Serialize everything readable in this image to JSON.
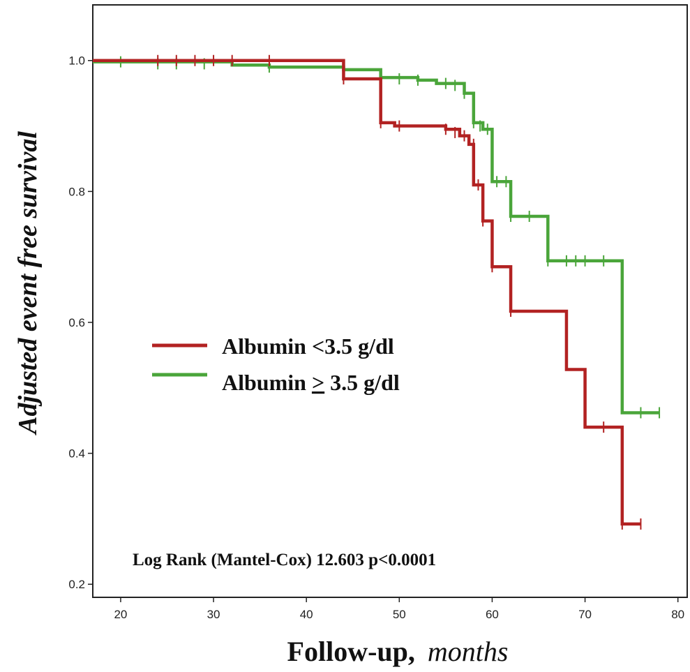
{
  "chart_data": {
    "type": "line",
    "subtype": "kaplan-meier",
    "ylabel": "Adjusted event free survival",
    "xlabel": {
      "main": "Follow-up,",
      "unit": "months"
    },
    "xlim": [
      17,
      81
    ],
    "ylim": [
      0.18,
      1.085
    ],
    "xticks": [
      20,
      30,
      40,
      50,
      60,
      70,
      80
    ],
    "yticks": [
      0.2,
      0.4,
      0.6,
      0.8,
      1.0
    ],
    "xtick_labels": [
      "20",
      "30",
      "40",
      "50",
      "60",
      "70",
      "80"
    ],
    "ytick_labels": [
      "0.2",
      "0.4",
      "0.6",
      "0.8",
      "1.0"
    ],
    "series": [
      {
        "name": "Albumin <3.5 g/dl",
        "legend_label": "Albumin <3.5 g/dl",
        "color": "#b22222",
        "steps": [
          [
            17,
            1.0
          ],
          [
            44,
            0.972
          ],
          [
            48,
            0.905
          ],
          [
            49.5,
            0.9
          ],
          [
            55,
            0.895
          ],
          [
            56.5,
            0.885
          ],
          [
            57.5,
            0.872
          ],
          [
            58,
            0.81
          ],
          [
            59,
            0.755
          ],
          [
            60,
            0.685
          ],
          [
            62,
            0.617
          ],
          [
            68,
            0.528
          ],
          [
            70,
            0.44
          ],
          [
            74,
            0.292
          ],
          [
            76,
            0.292
          ]
        ],
        "censored": [
          [
            24,
            1.0
          ],
          [
            26,
            1.0
          ],
          [
            28,
            1.0
          ],
          [
            30,
            1.0
          ],
          [
            32,
            1.0
          ],
          [
            36,
            1.0
          ],
          [
            44,
            0.972
          ],
          [
            48,
            0.905
          ],
          [
            50,
            0.9
          ],
          [
            55,
            0.895
          ],
          [
            56,
            0.89
          ],
          [
            57,
            0.885
          ],
          [
            58,
            0.872
          ],
          [
            58.5,
            0.81
          ],
          [
            59,
            0.755
          ],
          [
            60,
            0.685
          ],
          [
            62,
            0.617
          ],
          [
            72,
            0.44
          ],
          [
            74,
            0.292
          ],
          [
            76,
            0.292
          ]
        ]
      },
      {
        "name": "Albumin >=3.5 g/dl",
        "legend_prefix": "Albumin ",
        "legend_symbol": ">",
        "legend_suffix": "3.5 g/dl",
        "color": "#4aa53a",
        "steps": [
          [
            17,
            0.998
          ],
          [
            32,
            0.993
          ],
          [
            36,
            0.99
          ],
          [
            44,
            0.986
          ],
          [
            48,
            0.974
          ],
          [
            52,
            0.97
          ],
          [
            54,
            0.965
          ],
          [
            57,
            0.95
          ],
          [
            58,
            0.905
          ],
          [
            59,
            0.895
          ],
          [
            60,
            0.815
          ],
          [
            62,
            0.762
          ],
          [
            66,
            0.694
          ],
          [
            74,
            0.462
          ],
          [
            78,
            0.462
          ]
        ],
        "censored": [
          [
            20,
            0.998
          ],
          [
            24,
            0.995
          ],
          [
            26,
            0.995
          ],
          [
            29,
            0.995
          ],
          [
            36,
            0.99
          ],
          [
            44,
            0.986
          ],
          [
            48,
            0.974
          ],
          [
            50,
            0.972
          ],
          [
            52,
            0.97
          ],
          [
            55,
            0.965
          ],
          [
            56,
            0.962
          ],
          [
            57,
            0.95
          ],
          [
            58,
            0.905
          ],
          [
            58.7,
            0.9
          ],
          [
            59.5,
            0.895
          ],
          [
            60.5,
            0.815
          ],
          [
            61.5,
            0.815
          ],
          [
            62,
            0.762
          ],
          [
            64,
            0.762
          ],
          [
            66,
            0.694
          ],
          [
            68,
            0.694
          ],
          [
            69,
            0.694
          ],
          [
            70,
            0.694
          ],
          [
            72,
            0.694
          ],
          [
            76,
            0.462
          ],
          [
            78,
            0.462
          ]
        ]
      }
    ],
    "annotation": "Log Rank (Mantel-Cox)  12.603 p<0.0001"
  }
}
